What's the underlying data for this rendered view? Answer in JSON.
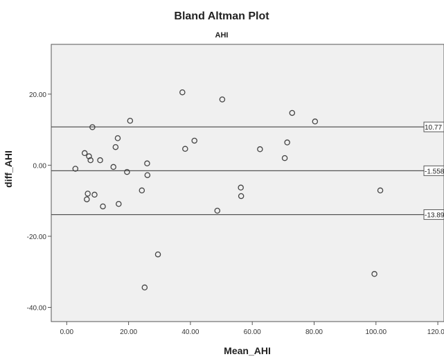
{
  "chart_data": {
    "type": "scatter",
    "title": "Bland Altman Plot",
    "subtitle": "AHI",
    "xlabel": "Mean_AHI",
    "ylabel": "diff_AHI",
    "xlim": [
      -5,
      122
    ],
    "ylim": [
      -44,
      34
    ],
    "xticks": [
      0,
      20,
      40,
      60,
      80,
      100,
      120
    ],
    "xtick_labels": [
      "0.00",
      "20.00",
      "40.00",
      "60.00",
      "80.00",
      "100.00",
      "120.00"
    ],
    "yticks": [
      20,
      0,
      -20,
      -40
    ],
    "ytick_labels": [
      "20.00",
      "0.00",
      "-20.00",
      "-40.00"
    ],
    "reference_lines": [
      {
        "value": 10.77,
        "label": "10.77"
      },
      {
        "value": -1.558,
        "label": "-1.558"
      },
      {
        "value": -13.89,
        "label": "-13.89"
      }
    ],
    "grid": false,
    "background_color": "#f0f0f0",
    "marker_color": "#444444",
    "points": [
      {
        "x": 2.8,
        "y": -1.0
      },
      {
        "x": 5.8,
        "y": 3.4
      },
      {
        "x": 6.5,
        "y": -9.6
      },
      {
        "x": 6.8,
        "y": -8.0
      },
      {
        "x": 7.2,
        "y": 2.5
      },
      {
        "x": 7.7,
        "y": 1.4
      },
      {
        "x": 8.3,
        "y": 10.7
      },
      {
        "x": 9.0,
        "y": -8.3
      },
      {
        "x": 10.8,
        "y": 1.4
      },
      {
        "x": 11.7,
        "y": -11.6
      },
      {
        "x": 15.1,
        "y": -0.5
      },
      {
        "x": 15.8,
        "y": 5.1
      },
      {
        "x": 16.5,
        "y": 7.6
      },
      {
        "x": 16.8,
        "y": -10.9
      },
      {
        "x": 19.5,
        "y": -1.9
      },
      {
        "x": 20.5,
        "y": 12.5
      },
      {
        "x": 24.3,
        "y": -7.1
      },
      {
        "x": 25.2,
        "y": -34.4
      },
      {
        "x": 26.0,
        "y": 0.5
      },
      {
        "x": 26.1,
        "y": -2.8
      },
      {
        "x": 29.5,
        "y": -25.1
      },
      {
        "x": 37.4,
        "y": 20.5
      },
      {
        "x": 38.3,
        "y": 4.6
      },
      {
        "x": 41.3,
        "y": 6.9
      },
      {
        "x": 48.7,
        "y": -12.8
      },
      {
        "x": 50.3,
        "y": 18.5
      },
      {
        "x": 56.3,
        "y": -6.3
      },
      {
        "x": 56.4,
        "y": -8.7
      },
      {
        "x": 62.5,
        "y": 4.5
      },
      {
        "x": 70.5,
        "y": 2.0
      },
      {
        "x": 71.3,
        "y": 6.4
      },
      {
        "x": 72.9,
        "y": 14.7
      },
      {
        "x": 80.3,
        "y": 12.3
      },
      {
        "x": 99.5,
        "y": -30.6
      },
      {
        "x": 101.4,
        "y": -7.1
      }
    ]
  }
}
